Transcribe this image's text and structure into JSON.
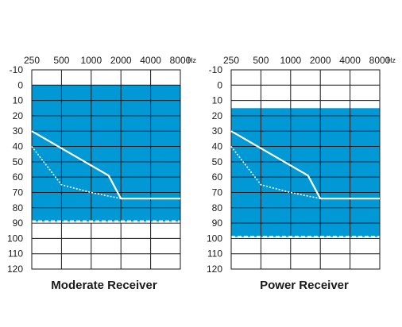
{
  "chart_data": [
    {
      "type": "area",
      "title": "Moderate Receiver",
      "x_unit": "Hz",
      "x_tick_labels": [
        "250",
        "500",
        "1000",
        "2000",
        "4000",
        "8000"
      ],
      "x_ticks": [
        250,
        500,
        1000,
        2000,
        4000,
        8000
      ],
      "x_scale": "log",
      "y_tick_labels": [
        "-10",
        "0",
        "10",
        "20",
        "30",
        "40",
        "50",
        "60",
        "70",
        "80",
        "90",
        "100",
        "110",
        "120"
      ],
      "y_ticks": [
        -10,
        0,
        10,
        20,
        30,
        40,
        50,
        60,
        70,
        80,
        90,
        100,
        110,
        120
      ],
      "y_reversed": true,
      "ylim": [
        -10,
        120
      ],
      "grid": true,
      "fill_color": "#0099d6",
      "fitting_range": {
        "top": 0,
        "bottom": 89
      },
      "series": [
        {
          "style": "solid",
          "x": [
            250,
            1500,
            2000,
            8000
          ],
          "y": [
            30,
            59,
            74,
            74
          ]
        },
        {
          "style": "dotted",
          "x": [
            250,
            500,
            1000,
            2000,
            8000
          ],
          "y": [
            40,
            65,
            70,
            74,
            74
          ]
        }
      ]
    },
    {
      "type": "area",
      "title": "Power Receiver",
      "x_unit": "Hz",
      "x_tick_labels": [
        "250",
        "500",
        "1000",
        "2000",
        "4000",
        "8000"
      ],
      "x_ticks": [
        250,
        500,
        1000,
        2000,
        4000,
        8000
      ],
      "x_scale": "log",
      "y_tick_labels": [
        "-10",
        "0",
        "10",
        "20",
        "30",
        "40",
        "50",
        "60",
        "70",
        "80",
        "90",
        "100",
        "110",
        "120"
      ],
      "y_ticks": [
        -10,
        0,
        10,
        20,
        30,
        40,
        50,
        60,
        70,
        80,
        90,
        100,
        110,
        120
      ],
      "y_reversed": true,
      "ylim": [
        -10,
        120
      ],
      "grid": true,
      "fill_color": "#0099d6",
      "fitting_range": {
        "top": 15,
        "bottom": 99
      },
      "series": [
        {
          "style": "solid",
          "x": [
            250,
            1500,
            2000,
            8000
          ],
          "y": [
            30,
            59,
            74,
            74
          ]
        },
        {
          "style": "dotted",
          "x": [
            250,
            500,
            1000,
            2000,
            8000
          ],
          "y": [
            40,
            65,
            70,
            74,
            74
          ]
        }
      ]
    }
  ]
}
